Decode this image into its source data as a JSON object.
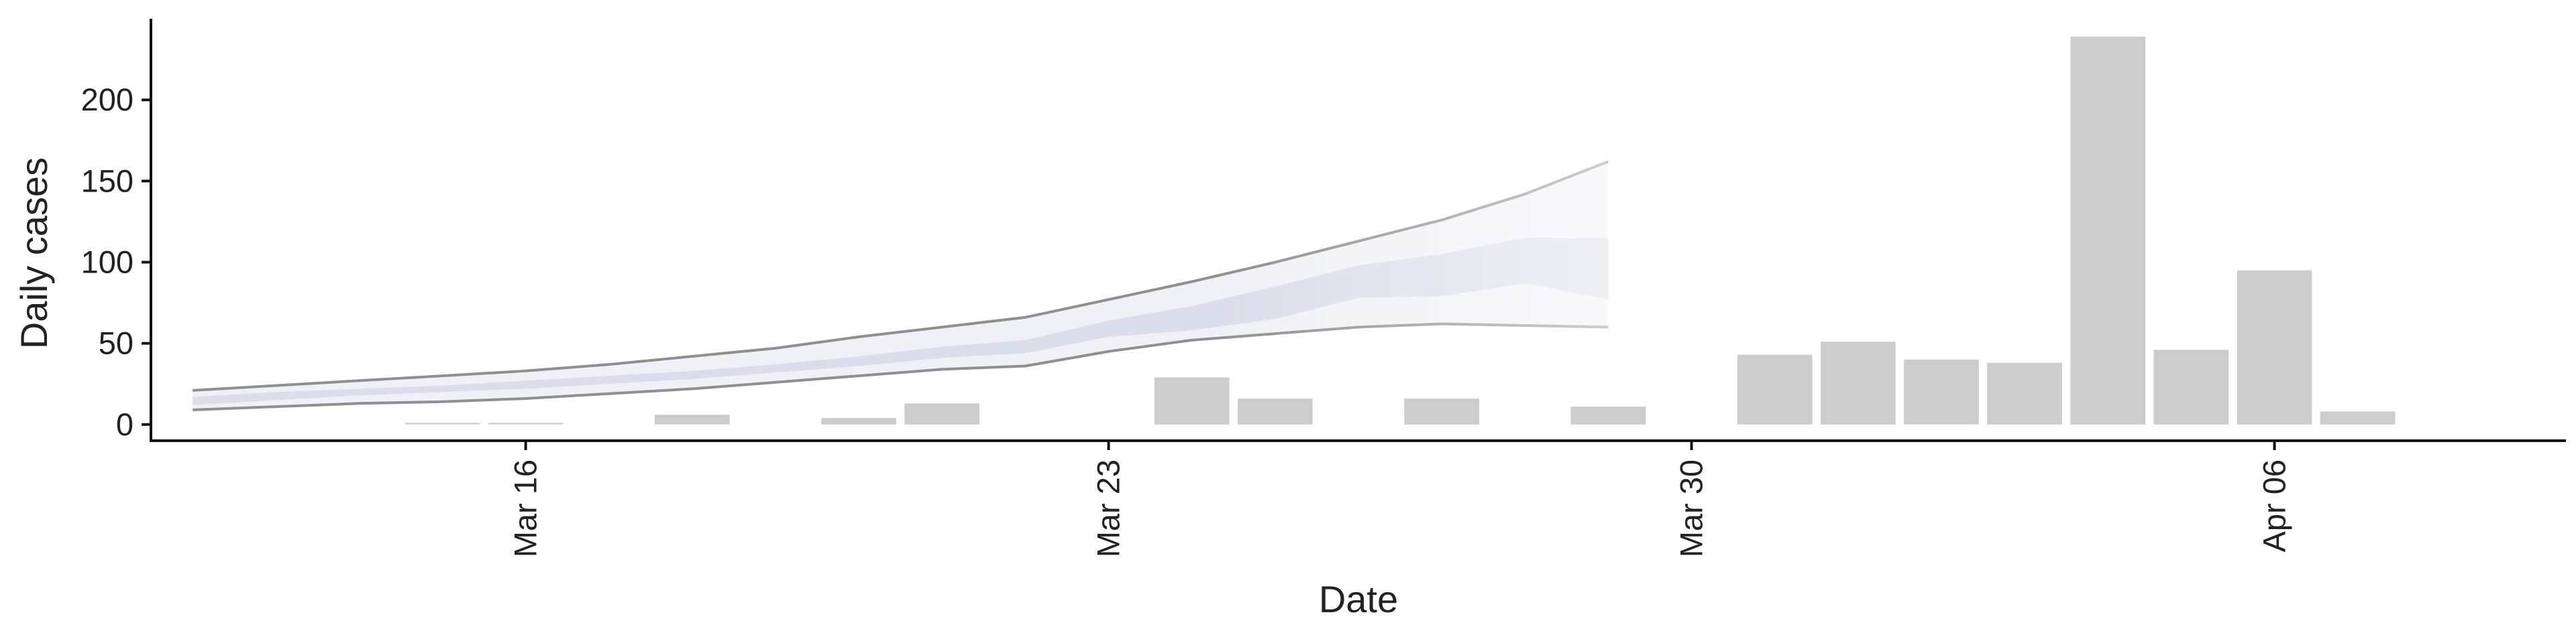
{
  "chart_data": {
    "type": "bar",
    "title": "",
    "xlabel": "Date",
    "ylabel": "Daily cases",
    "ylim": [
      -10,
      250
    ],
    "y_ticks": [
      0,
      50,
      100,
      150,
      200
    ],
    "x_range": [
      "2020-03-11T12:00",
      "2020-04-09T12:00"
    ],
    "x_ticks": [
      {
        "date": "2020-03-16",
        "label": "Mar 16"
      },
      {
        "date": "2020-03-23",
        "label": "Mar 23"
      },
      {
        "date": "2020-03-30",
        "label": "Mar 30"
      },
      {
        "date": "2020-04-06",
        "label": "Apr 06"
      }
    ],
    "grid": false,
    "legend": "none",
    "bars": {
      "color": "#cccccc",
      "dates": [
        "2020-03-15",
        "2020-03-16",
        "2020-03-18",
        "2020-03-20",
        "2020-03-21",
        "2020-03-24",
        "2020-03-25",
        "2020-03-27",
        "2020-03-29",
        "2020-03-31",
        "2020-04-01",
        "2020-04-02",
        "2020-04-03",
        "2020-04-04",
        "2020-04-05",
        "2020-04-06",
        "2020-04-07"
      ],
      "values": [
        1,
        1,
        6,
        4,
        13,
        29,
        16,
        16,
        11,
        43,
        51,
        40,
        38,
        239,
        46,
        95,
        8
      ]
    },
    "nowcast": {
      "dates": [
        "2020-03-12",
        "2020-03-13",
        "2020-03-14",
        "2020-03-15",
        "2020-03-16",
        "2020-03-17",
        "2020-03-18",
        "2020-03-19",
        "2020-03-20",
        "2020-03-21",
        "2020-03-22",
        "2020-03-23",
        "2020-03-24",
        "2020-03-25",
        "2020-03-26",
        "2020-03-27",
        "2020-03-28",
        "2020-03-29"
      ],
      "lower_90": [
        9,
        11,
        13,
        14,
        16,
        19,
        22,
        26,
        30,
        34,
        36,
        45,
        52,
        56,
        60,
        62,
        61,
        60
      ],
      "upper_90": [
        21,
        24,
        27,
        30,
        33,
        37,
        42,
        47,
        54,
        60,
        66,
        77,
        88,
        100,
        113,
        126,
        142,
        162
      ],
      "lower_50": [
        12,
        15,
        18,
        20,
        22,
        25,
        28,
        32,
        36,
        41,
        44,
        54,
        58,
        65,
        78,
        79,
        87,
        77
      ],
      "upper_50": [
        17,
        20,
        22,
        24,
        27,
        30,
        33,
        37,
        42,
        48,
        52,
        64,
        73,
        85,
        98,
        105,
        115,
        115
      ],
      "band_color": "#c9cde0",
      "line_color": "#8f8f8f"
    }
  }
}
